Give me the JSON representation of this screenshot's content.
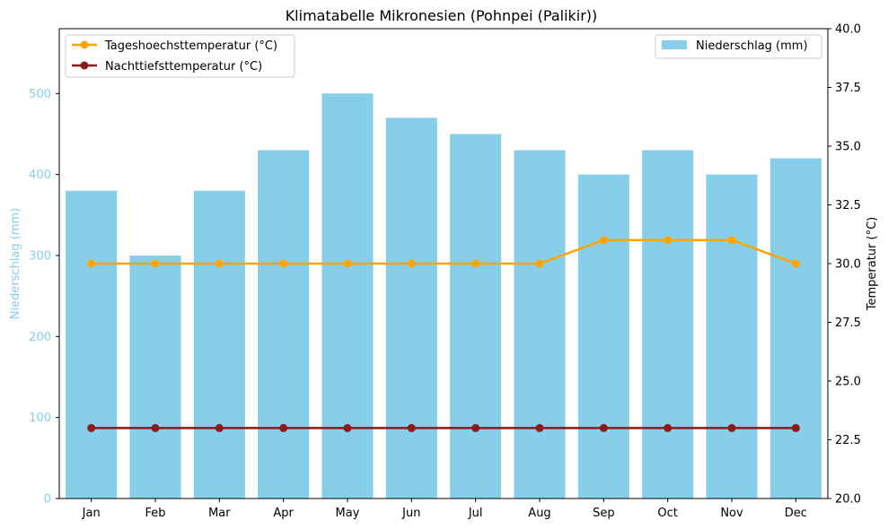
{
  "chart_data": {
    "type": "bar",
    "title": "Klimatabelle Mikronesien (Pohnpei (Palikir))",
    "categories": [
      "Jan",
      "Feb",
      "Mar",
      "Apr",
      "May",
      "Jun",
      "Jul",
      "Aug",
      "Sep",
      "Oct",
      "Nov",
      "Dec"
    ],
    "bar_series": {
      "name": "Niederschlag (mm)",
      "values": [
        380,
        300,
        380,
        430,
        500,
        470,
        450,
        430,
        400,
        430,
        400,
        420
      ],
      "color": "#87ceeb"
    },
    "line_series": [
      {
        "name": "Tageshoechsttemperatur (°C)",
        "values": [
          30,
          30,
          30,
          30,
          30,
          30,
          30,
          30,
          31,
          31,
          31,
          30
        ],
        "color": "#ffa500"
      },
      {
        "name": "Nachttiefsttemperatur (°C)",
        "values": [
          23,
          23,
          23,
          23,
          23,
          23,
          23,
          23,
          23,
          23,
          23,
          23
        ],
        "color": "#8b1a1a"
      }
    ],
    "y_left": {
      "label": "Niederschlag (mm)",
      "ylim": [
        0,
        580
      ],
      "ticks": [
        0,
        100,
        200,
        300,
        400,
        500
      ],
      "color": "#87ceeb"
    },
    "y_right": {
      "label": "Temperatur (°C)",
      "ylim": [
        20,
        40
      ],
      "ticks": [
        "20.0",
        "22.5",
        "25.0",
        "27.5",
        "30.0",
        "32.5",
        "35.0",
        "37.5",
        "40.0"
      ]
    },
    "grid": false,
    "legend_lines_position": "top-left",
    "legend_bars_position": "top-right"
  }
}
